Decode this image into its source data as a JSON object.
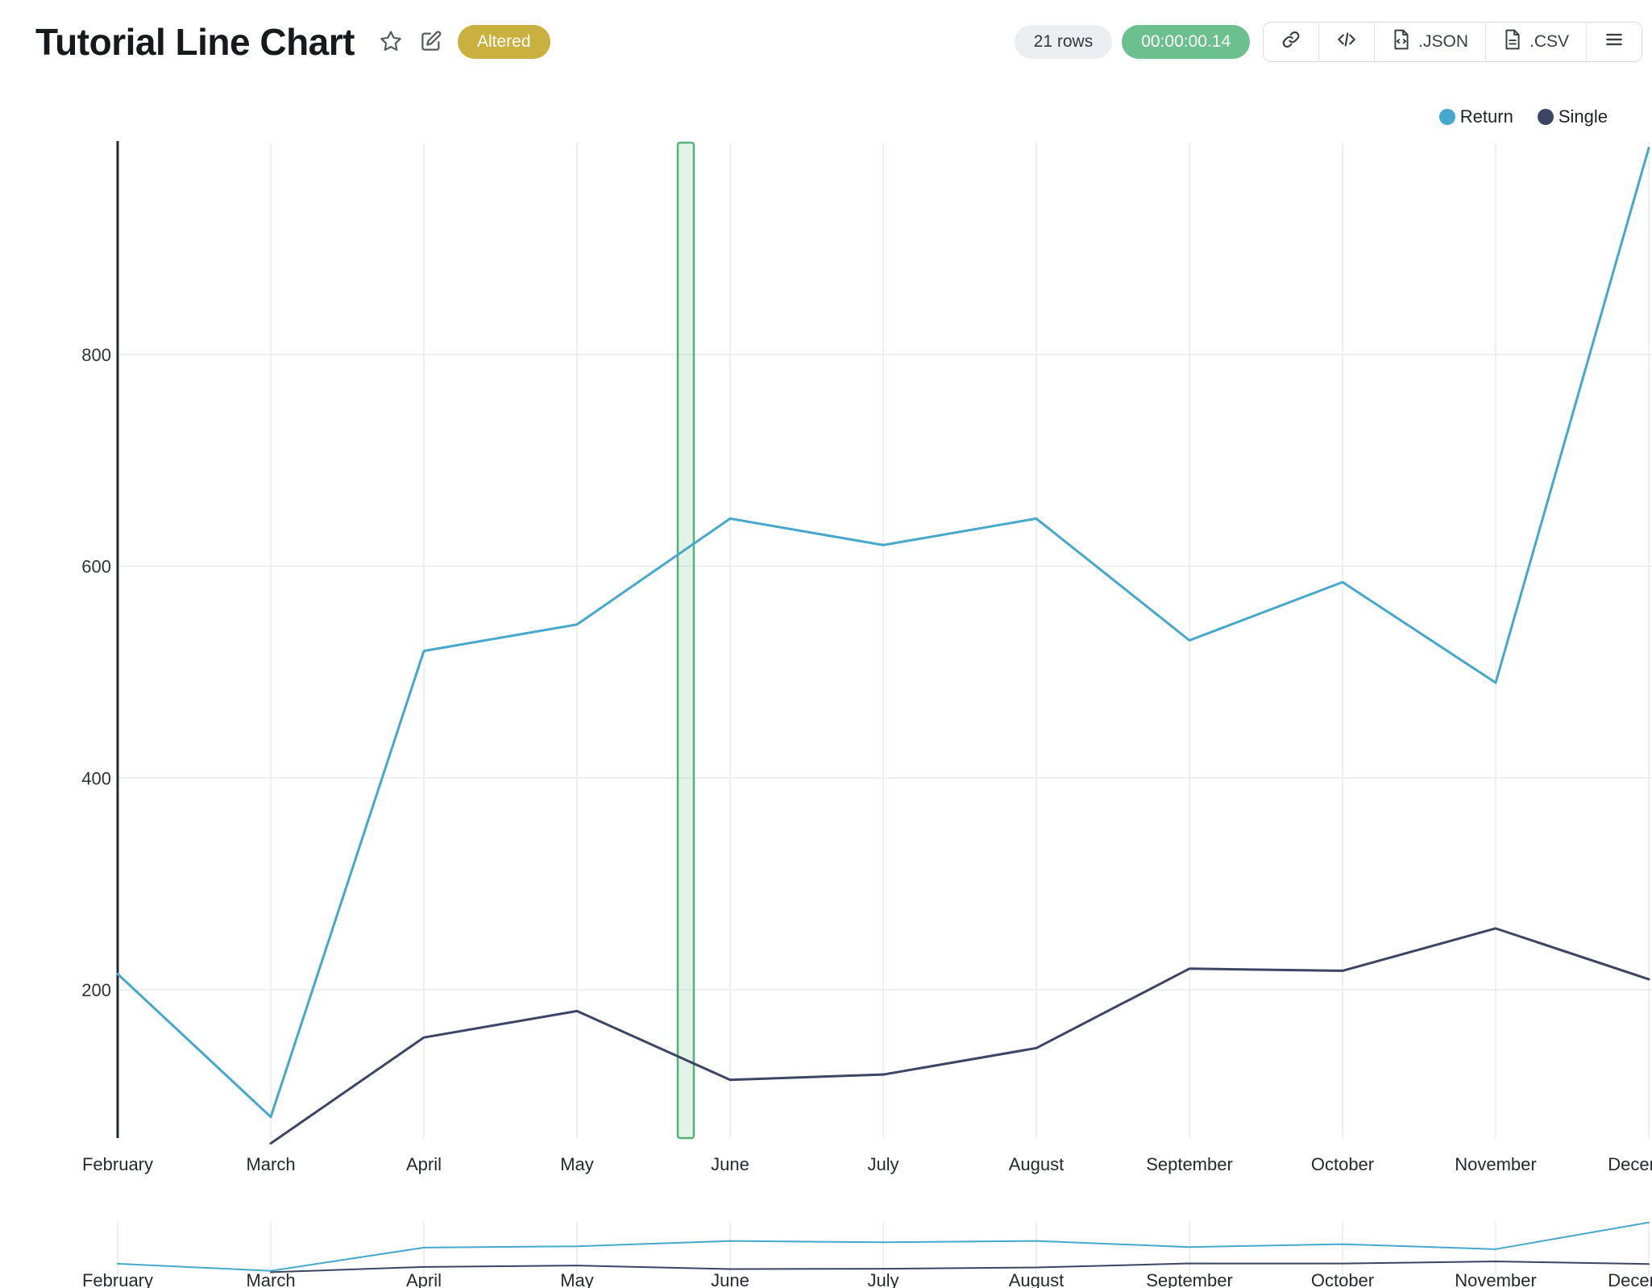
{
  "header": {
    "title": "Tutorial Line Chart",
    "altered_badge": "Altered",
    "rows_badge": "21 rows",
    "timer_badge": "00:00:00.14",
    "json_label": ".JSON",
    "csv_label": ".CSV"
  },
  "legend": {
    "items": [
      {
        "label": "Return",
        "color": "#45a8cc"
      },
      {
        "label": "Single",
        "color": "#3c4664"
      }
    ]
  },
  "chart_data": {
    "type": "line",
    "title": "Tutorial Line Chart",
    "x": [
      "February",
      "March",
      "April",
      "May",
      "June",
      "July",
      "August",
      "September",
      "October",
      "November",
      "December"
    ],
    "series": [
      {
        "name": "Return",
        "color": "#45a8cc",
        "values": [
          215,
          80,
          520,
          545,
          645,
          620,
          645,
          530,
          585,
          490,
          995
        ]
      },
      {
        "name": "Single",
        "color": "#3c4664",
        "values": [
          null,
          55,
          155,
          180,
          115,
          120,
          145,
          220,
          218,
          258,
          210
        ]
      }
    ],
    "yticks": [
      200,
      400,
      600,
      800
    ],
    "ylim": [
      60,
      1000
    ],
    "grid": true,
    "legend_position": "top-right",
    "annotation_band": {
      "between": [
        "May",
        "June"
      ],
      "fill_color": "rgba(126,199,151,0.22)",
      "border_color": "#55b178"
    },
    "navigator": {
      "enabled": true,
      "ylim": [
        0,
        1005
      ]
    }
  }
}
